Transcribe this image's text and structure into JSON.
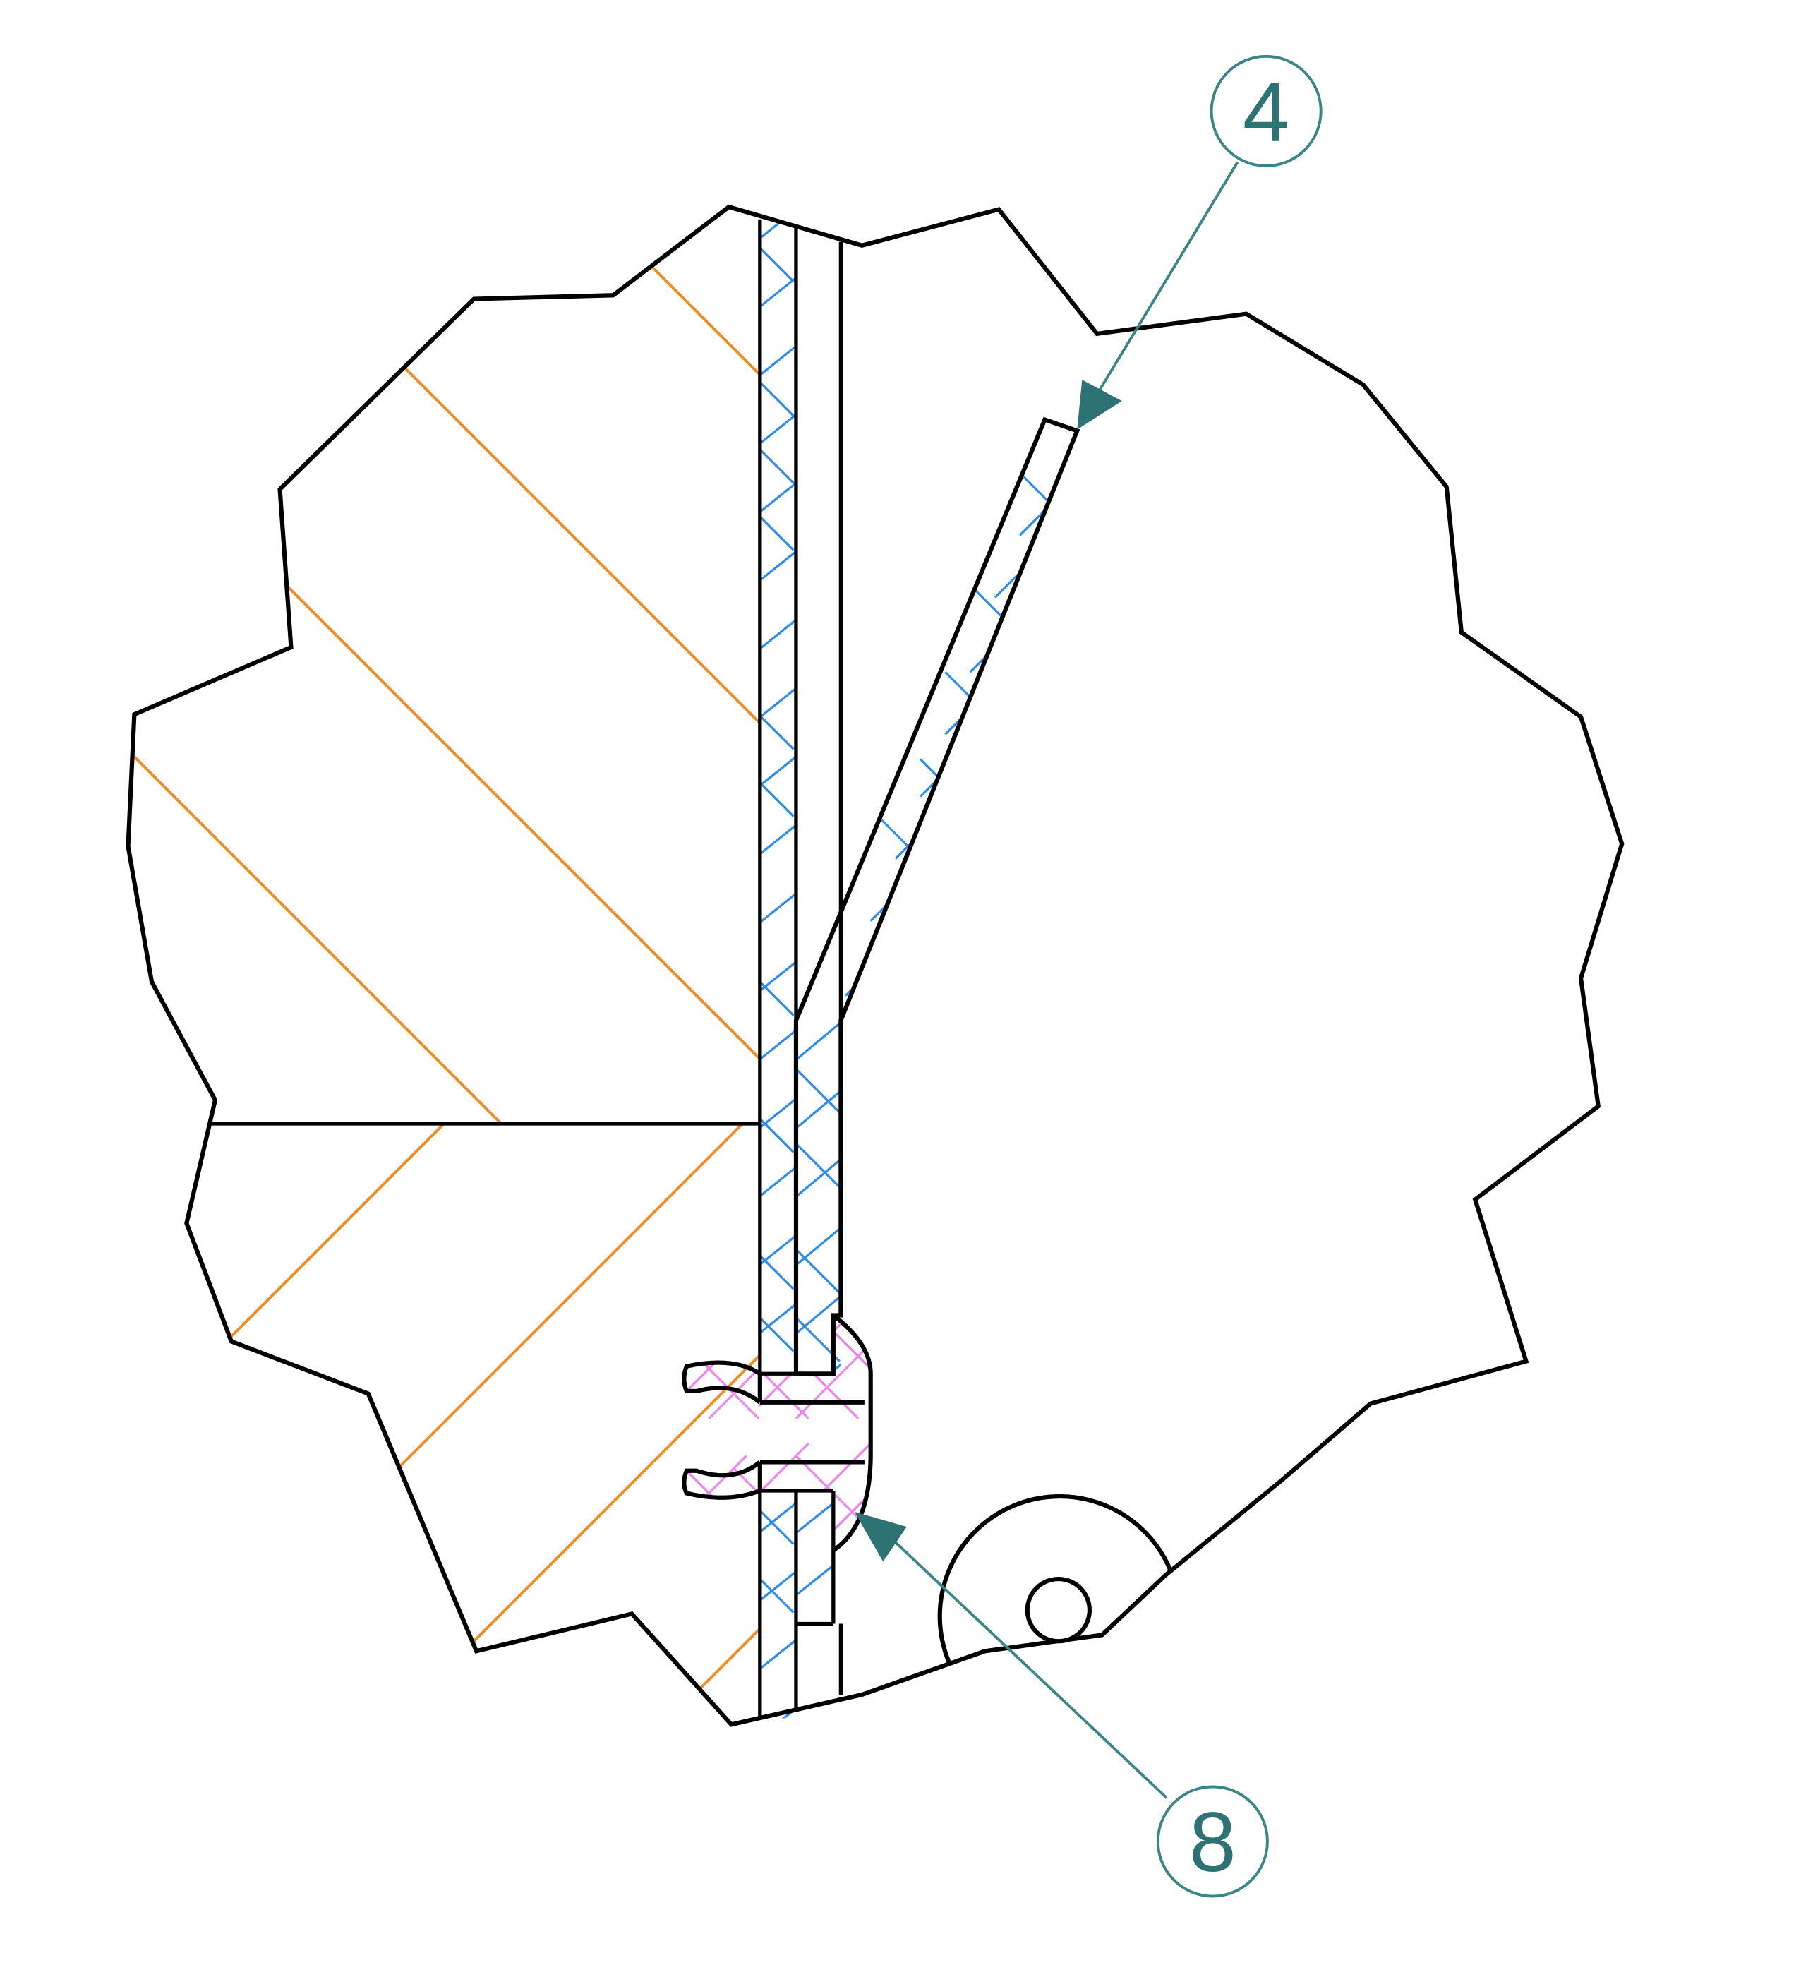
{
  "figure": {
    "type": "technical-detail-section",
    "callouts": [
      {
        "id": "callout-4",
        "label": "4"
      },
      {
        "id": "callout-8",
        "label": "8"
      }
    ],
    "hatch_colors": {
      "orange": "#f28c1e",
      "blue": "#2b8cf0",
      "pink": "#ee82ee"
    },
    "leader_color": "#3a8585",
    "outline_color": "#000000"
  }
}
